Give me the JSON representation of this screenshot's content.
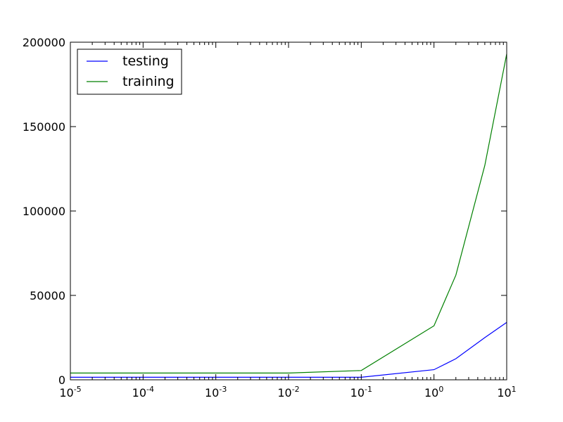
{
  "chart_data": {
    "type": "line",
    "x": [
      1e-05,
      0.0001,
      0.001,
      0.01,
      0.1,
      1,
      2,
      5,
      10
    ],
    "xscale": "log",
    "xlim": [
      1e-05,
      10
    ],
    "ylim": [
      0,
      200000
    ],
    "xtick_labels": [
      {
        "base": "10",
        "exp": "-5"
      },
      {
        "base": "10",
        "exp": "-4"
      },
      {
        "base": "10",
        "exp": "-3"
      },
      {
        "base": "10",
        "exp": "-2"
      },
      {
        "base": "10",
        "exp": "-1"
      },
      {
        "base": "10",
        "exp": "0"
      },
      {
        "base": "10",
        "exp": "1"
      }
    ],
    "ytick_values": [
      0,
      50000,
      100000,
      150000,
      200000
    ],
    "ytick_labels": [
      "0",
      "50000",
      "100000",
      "150000",
      "200000"
    ],
    "grid": false,
    "legend_position": "top-left",
    "series": [
      {
        "name": "testing",
        "color": "#0000ff",
        "values": [
          1500,
          1500,
          1500,
          1500,
          1500,
          6000,
          12500,
          25000,
          34000
        ]
      },
      {
        "name": "training",
        "color": "#008000",
        "values": [
          4000,
          4000,
          4000,
          4000,
          5500,
          32000,
          62000,
          127000,
          193000
        ]
      }
    ]
  }
}
